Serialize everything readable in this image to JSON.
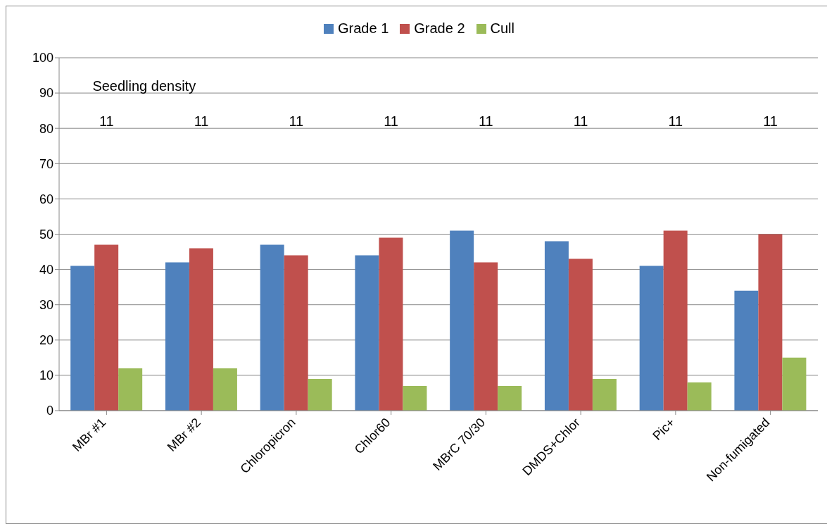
{
  "chart_data": {
    "type": "bar",
    "categories": [
      "MBr #1",
      "MBr #2",
      "Chloropicron",
      "Chlor60",
      "MBrC 70/30",
      "DMDS+Chlor",
      "Pic+",
      "Non-fumigated"
    ],
    "series": [
      {
        "name": "Grade 1",
        "color": "#4f81bd",
        "values": [
          41,
          42,
          47,
          44,
          51,
          48,
          41,
          34
        ]
      },
      {
        "name": "Grade 2",
        "color": "#c0504d",
        "values": [
          47,
          46,
          44,
          49,
          42,
          43,
          51,
          50
        ]
      },
      {
        "name": "Cull",
        "color": "#9bbb59",
        "values": [
          12,
          12,
          9,
          7,
          7,
          9,
          8,
          15
        ]
      }
    ],
    "ylim": [
      0,
      100
    ],
    "yticks": [
      0,
      10,
      20,
      30,
      40,
      50,
      60,
      70,
      80,
      90,
      100
    ],
    "grid": "y",
    "legend": "top",
    "annotations": [
      "Seedling density",
      "11",
      "11",
      "11",
      "11",
      "11",
      "11",
      "11",
      "11"
    ]
  }
}
